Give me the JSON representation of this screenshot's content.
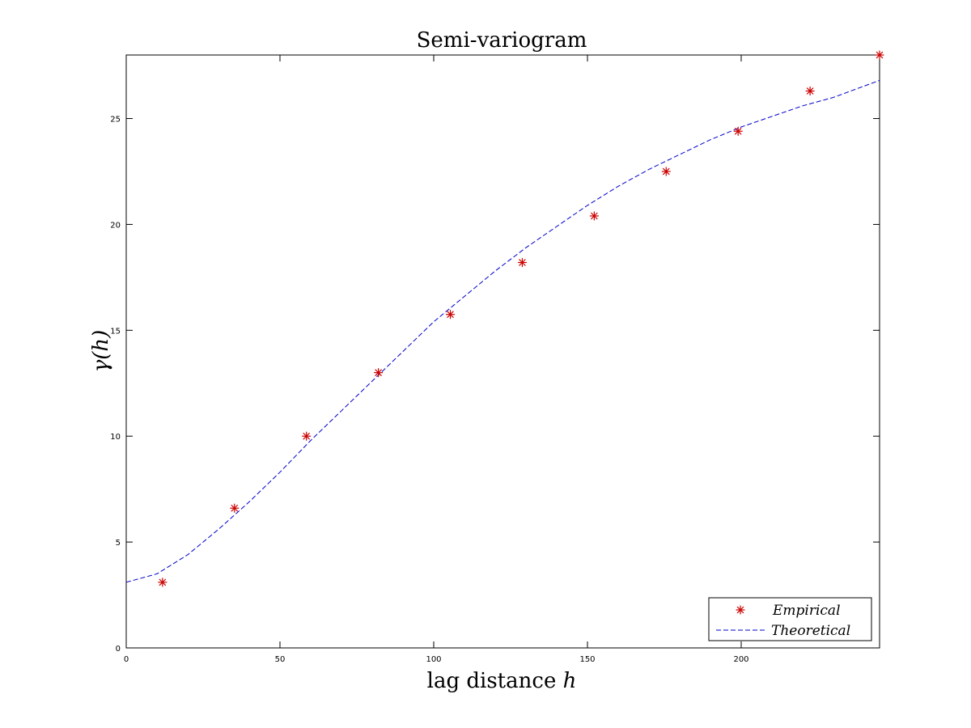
{
  "chart_data": {
    "type": "scatter",
    "title": "Semi-variogram",
    "xlabel": "lag distance",
    "xlabel_var": "h",
    "ylabel": "γ(h)",
    "xlim": [
      0,
      245
    ],
    "ylim": [
      0,
      28
    ],
    "xticks": [
      0,
      50,
      100,
      150,
      200
    ],
    "yticks": [
      0,
      5,
      10,
      15,
      20,
      25
    ],
    "grid": false,
    "legend_position": "bottom-right",
    "series": [
      {
        "name": "Empirical",
        "style": "markers",
        "marker": "asterisk",
        "color": "#cc0000",
        "x": [
          11.8,
          35.2,
          58.6,
          82.0,
          105.4,
          128.8,
          152.2,
          175.6,
          199.0,
          222.4,
          245.0
        ],
        "y": [
          3.1,
          6.6,
          10.0,
          13.0,
          15.75,
          18.2,
          20.4,
          22.5,
          24.4,
          26.3,
          28.0
        ]
      },
      {
        "name": "Theoretical",
        "style": "dashed-line",
        "color": "#0000cc",
        "x": [
          0,
          10,
          20,
          30,
          40,
          50,
          60,
          70,
          80,
          90,
          100,
          110,
          120,
          130,
          140,
          150,
          160,
          170,
          180,
          190,
          200,
          210,
          220,
          230,
          245
        ],
        "y": [
          3.1,
          3.5,
          4.4,
          5.6,
          6.9,
          8.3,
          9.8,
          11.2,
          12.6,
          14.0,
          15.4,
          16.6,
          17.8,
          18.9,
          19.9,
          20.9,
          21.8,
          22.6,
          23.3,
          24.0,
          24.6,
          25.1,
          25.6,
          26.0,
          26.8
        ]
      }
    ]
  }
}
